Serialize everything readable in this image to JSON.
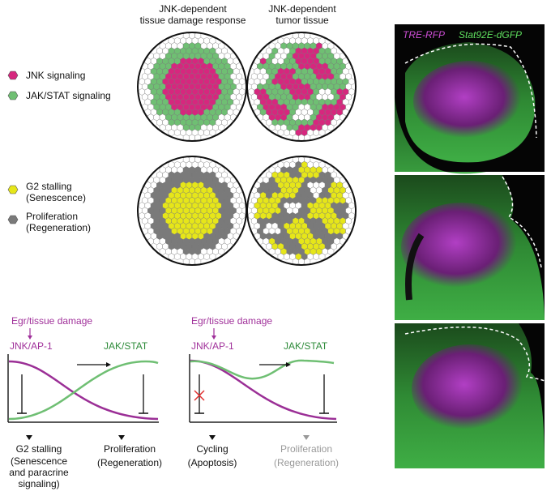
{
  "column_titles": [
    [
      "JNK-dependent",
      "tissue damage response"
    ],
    [
      "JNK-dependent",
      "tumor tissue"
    ]
  ],
  "legend": {
    "signaling": [
      "JNK signaling",
      "JAK/STAT signaling"
    ],
    "fate": [
      [
        "G2 stalling",
        "(Senescence)"
      ],
      [
        "Proliferation",
        "(Regeneration)"
      ]
    ]
  },
  "image_label": {
    "rfp": "TRE-RFP",
    "gfp": "Stat92E-dGFP"
  },
  "panels": [
    {
      "trigger": "Egr/tissue damage",
      "left": "JNK/AP-1",
      "right": "JAK/STAT",
      "outcome_left": [
        "G2 stalling",
        "(Senescence",
        "and paracrine",
        "signaling)"
      ],
      "outcome_right": [
        "Proliferation",
        "(Regeneration)"
      ]
    },
    {
      "trigger": "Egr/tissue damage",
      "left": "JNK/AP-1",
      "right": "JAK/STAT",
      "outcome_left": [
        "Cycling",
        "(Apoptosis)"
      ],
      "outcome_right": [
        "Proliferation",
        "(Regeneration)"
      ]
    }
  ]
}
